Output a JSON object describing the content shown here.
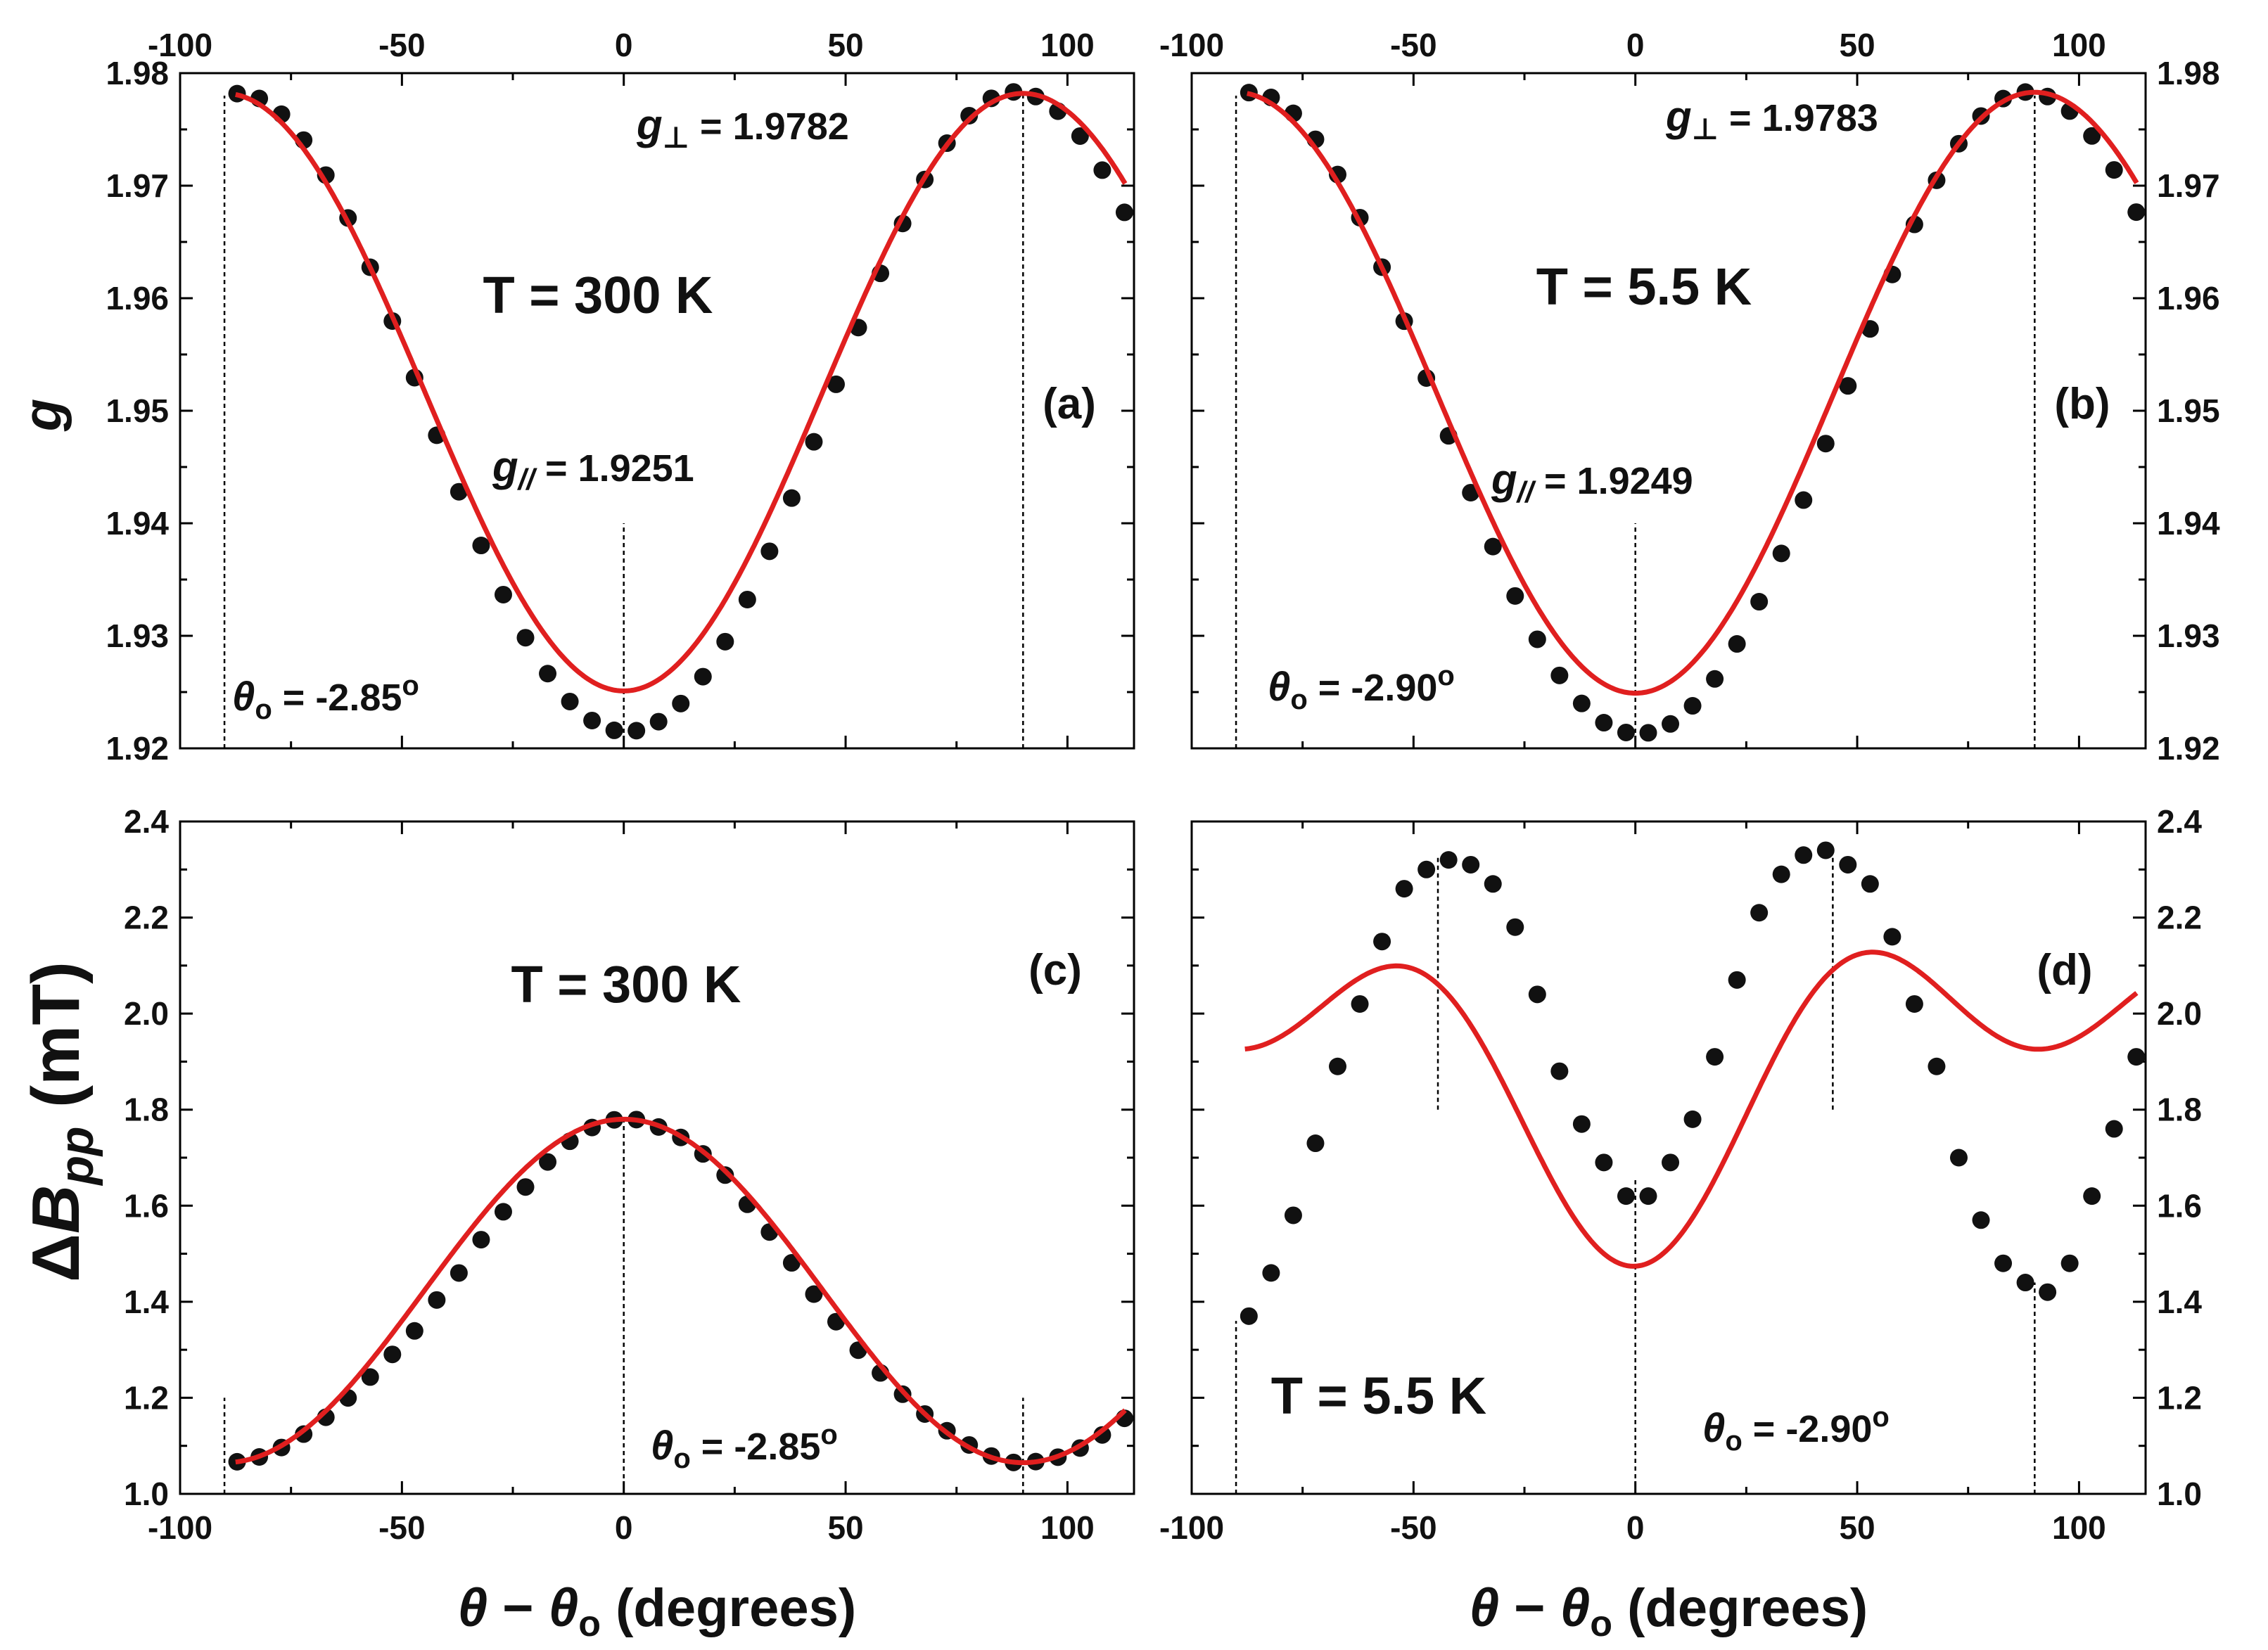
{
  "figure": {
    "x_axis_label_parts": {
      "theta": "θ",
      "minus": " − ",
      "theta0": "θ",
      "sub": "o",
      "units": "(degrees)"
    },
    "y_label_top": "g",
    "y_label_bottom": {
      "delta": "Δ",
      "B": "B",
      "sub": "pp",
      "units": " (mT)"
    }
  },
  "chart_data": [
    {
      "panel": "a",
      "type": "scatter+line",
      "tag": "(a)",
      "title": "T = 300 K",
      "x_range": [
        -100,
        115
      ],
      "y_range": [
        1.92,
        1.98
      ],
      "x_ticks": [
        -100,
        -50,
        0,
        50,
        100
      ],
      "x_tick_labels": [
        "-100",
        "-50",
        "0",
        "50",
        "100"
      ],
      "y_ticks": [
        1.92,
        1.93,
        1.94,
        1.95,
        1.96,
        1.97,
        1.98
      ],
      "y_tick_labels": [
        "1.92",
        "1.93",
        "1.94",
        "1.95",
        "1.96",
        "1.97",
        "1.98"
      ],
      "x_label_side": "none",
      "y_label_side": "left",
      "model": {
        "kind": "g",
        "g_par": 1.9251,
        "g_perp": 1.9782
      },
      "x_start": -87.15,
      "x_step": 5,
      "n": 41,
      "points_y": [
        1.97818,
        1.97775,
        1.97635,
        1.97405,
        1.97094,
        1.96713,
        1.96275,
        1.95797,
        1.95294,
        1.94782,
        1.9428,
        1.93803,
        1.93366,
        1.92983,
        1.92664,
        1.92416,
        1.92247,
        1.9216,
        1.92157,
        1.92237,
        1.92398,
        1.92637,
        1.92948,
        1.93322,
        1.93751,
        1.94224,
        1.94724,
        1.95235,
        1.95739,
        1.96221,
        1.96664,
        1.97055,
        1.97378,
        1.97622,
        1.97776,
        1.97833,
        1.97792,
        1.97662,
        1.97441,
        1.97138,
        1.96763
      ],
      "ref_lines": [
        {
          "x": -90,
          "y_from": 1.92,
          "y_to": 1.978
        },
        {
          "x": 0,
          "y_from": 1.92,
          "y_to": 1.94
        },
        {
          "x": 90,
          "y_from": 1.92,
          "y_to": 1.978
        }
      ],
      "annotations": {
        "g_perp": {
          "sym": "g",
          "sub": "⊥",
          "text": " = 1.9782"
        },
        "g_par": {
          "sym": "g",
          "sub": "//",
          "text": " = 1.9251"
        },
        "theta0": {
          "sym": "θ",
          "sub": "o",
          "text": " = -2.85",
          "deg": "o"
        }
      }
    },
    {
      "panel": "b",
      "type": "scatter+line",
      "tag": "(b)",
      "title": "T = 5.5 K",
      "x_range": [
        -100,
        115
      ],
      "y_range": [
        1.92,
        1.98
      ],
      "x_ticks": [
        -100,
        -50,
        0,
        50,
        100
      ],
      "x_tick_labels": [
        "-100",
        "-50",
        "0",
        "50",
        "100"
      ],
      "y_ticks": [
        1.92,
        1.93,
        1.94,
        1.95,
        1.96,
        1.97,
        1.98
      ],
      "y_tick_labels": [
        "1.92",
        "1.93",
        "1.94",
        "1.95",
        "1.96",
        "1.97",
        "1.98"
      ],
      "x_label_side": "none",
      "y_label_side": "right",
      "model": {
        "kind": "g",
        "g_par": 1.9249,
        "g_perp": 1.9783
      },
      "x_start": -87.1,
      "x_step": 5,
      "n": 41,
      "points_y": [
        1.97827,
        1.97784,
        1.97643,
        1.97412,
        1.97099,
        1.96716,
        1.96276,
        1.95796,
        1.95291,
        1.94777,
        1.94272,
        1.93793,
        1.93354,
        1.92969,
        1.92648,
        1.92399,
        1.92228,
        1.92141,
        1.92138,
        1.92217,
        1.92378,
        1.92617,
        1.92928,
        1.93303,
        1.93732,
        1.94206,
        1.94708,
        1.95221,
        1.95727,
        1.96211,
        1.96656,
        1.97048,
        1.97373,
        1.97619,
        1.97774,
        1.97832,
        1.97792,
        1.97663,
        1.97442,
        1.9714,
        1.96765
      ],
      "ref_lines": [
        {
          "x": -90,
          "y_from": 1.92,
          "y_to": 1.978
        },
        {
          "x": 0,
          "y_from": 1.92,
          "y_to": 1.94
        },
        {
          "x": 90,
          "y_from": 1.92,
          "y_to": 1.978
        }
      ],
      "annotations": {
        "g_perp": {
          "sym": "g",
          "sub": "⊥",
          "text": " = 1.9783"
        },
        "g_par": {
          "sym": "g",
          "sub": "//",
          "text": " = 1.9249"
        },
        "theta0": {
          "sym": "θ",
          "sub": "o",
          "text": " = -2.90",
          "deg": "o"
        }
      }
    },
    {
      "panel": "c",
      "type": "scatter+line",
      "tag": "(c)",
      "title": "T = 300 K",
      "x_range": [
        -100,
        115
      ],
      "y_range": [
        1.0,
        2.4
      ],
      "x_ticks": [
        -100,
        -50,
        0,
        50,
        100
      ],
      "x_tick_labels": [
        "-100",
        "-50",
        "0",
        "50",
        "100"
      ],
      "y_ticks": [
        1.0,
        1.2,
        1.4,
        1.6,
        1.8,
        2.0,
        2.2,
        2.4
      ],
      "y_tick_labels": [
        "1.0",
        "1.2",
        "1.4",
        "1.6",
        "1.8",
        "2.0",
        "2.2",
        "2.4"
      ],
      "x_label_side": "bottom",
      "y_label_side": "left",
      "model": {
        "kind": "linewidth_300K",
        "B_par": 1.78,
        "B_perp": 1.065
      },
      "points_x": [
        -87.15,
        -82.15,
        -77.15,
        -72.15,
        -67.15,
        -62.15,
        -57.15,
        -52.15,
        -47.15,
        -42.15,
        -37.15,
        -32.15,
        -27.15,
        -22.15,
        -17.15,
        -12.15,
        -7.15,
        -2.15,
        2.85,
        7.85,
        12.85,
        17.85,
        22.85,
        27.85,
        32.85,
        37.85,
        42.85,
        47.85,
        52.85,
        57.85,
        62.85,
        67.85,
        72.85,
        77.85,
        82.85,
        87.85,
        92.85,
        97.85,
        102.85,
        107.85,
        112.85
      ],
      "points_y": [
        1.0668,
        1.0769,
        1.0965,
        1.1244,
        1.1595,
        1.1998,
        1.2432,
        1.2904,
        1.3393,
        1.4037,
        1.4599,
        1.5293,
        1.5874,
        1.6389,
        1.6911,
        1.7342,
        1.7628,
        1.7788,
        1.7793,
        1.7639,
        1.7421,
        1.7078,
        1.6637,
        1.6029,
        1.5452,
        1.481,
        1.4159,
        1.3585,
        1.2992,
        1.2518,
        1.2075,
        1.1663,
        1.1314,
        1.1018,
        1.0788,
        1.0654,
        1.0672,
        1.0764,
        1.0954,
        1.1227,
        1.1573
      ],
      "ref_lines": [
        {
          "x": -90,
          "y_from": 1.0,
          "y_to": 1.2
        },
        {
          "x": 0,
          "y_from": 1.0,
          "y_to": 1.78
        },
        {
          "x": 90,
          "y_from": 1.0,
          "y_to": 1.2
        }
      ],
      "annotations": {
        "theta0": {
          "sym": "θ",
          "sub": "o",
          "text": " = -2.85",
          "deg": "o"
        }
      }
    },
    {
      "panel": "d",
      "type": "scatter+line",
      "tag": "(d)",
      "title": "T = 5.5 K",
      "x_range": [
        -100,
        115
      ],
      "y_range": [
        1.0,
        2.4
      ],
      "x_ticks": [
        -100,
        -50,
        0,
        50,
        100
      ],
      "x_tick_labels": [
        "-100",
        "-50",
        "0",
        "50",
        "100"
      ],
      "y_ticks": [
        1.0,
        1.2,
        1.4,
        1.6,
        1.8,
        2.0,
        2.2,
        2.4
      ],
      "y_tick_labels": [
        "1.0",
        "1.2",
        "1.4",
        "1.6",
        "1.8",
        "2.0",
        "2.2",
        "2.4"
      ],
      "x_label_side": "bottom",
      "y_label_side": "right",
      "model": {
        "kind": "linewidth_5K",
        "x_from": -88
      },
      "points_x": [
        -87.1,
        -82.1,
        -77.1,
        -72.1,
        -67.1,
        -62.1,
        -57.1,
        -52.1,
        -47.1,
        -42.1,
        -37.1,
        -32.1,
        -27.1,
        -22.1,
        -17.1,
        -12.1,
        -7.1,
        -2.1,
        2.9,
        7.9,
        12.9,
        17.9,
        22.9,
        27.9,
        32.9,
        37.9,
        42.9,
        47.9,
        52.9,
        57.9,
        62.9,
        67.9,
        72.9,
        77.9,
        82.9,
        87.9,
        92.9,
        97.9,
        102.9,
        107.9,
        112.9
      ],
      "points_y": [
        1.37,
        1.46,
        1.58,
        1.73,
        1.89,
        2.02,
        2.15,
        2.26,
        2.3,
        2.32,
        2.31,
        2.27,
        2.18,
        2.04,
        1.88,
        1.77,
        1.69,
        1.62,
        1.62,
        1.69,
        1.78,
        1.91,
        2.07,
        2.21,
        2.29,
        2.33,
        2.34,
        2.31,
        2.27,
        2.16,
        2.02,
        1.89,
        1.7,
        1.57,
        1.48,
        1.44,
        1.42,
        1.48,
        1.62,
        1.76,
        1.91
      ],
      "ref_lines": [
        {
          "x": -90,
          "y_from": 1.0,
          "y_to": 1.36
        },
        {
          "x": -44.5,
          "y_from": 1.8,
          "y_to": 2.33
        },
        {
          "x": 0,
          "y_from": 1.0,
          "y_to": 1.66
        },
        {
          "x": 44.5,
          "y_from": 1.8,
          "y_to": 2.33
        },
        {
          "x": 90,
          "y_from": 1.0,
          "y_to": 1.44
        }
      ],
      "annotations": {
        "theta0": {
          "sym": "θ",
          "sub": "o",
          "text": " = -2.90",
          "deg": "o"
        }
      }
    }
  ]
}
